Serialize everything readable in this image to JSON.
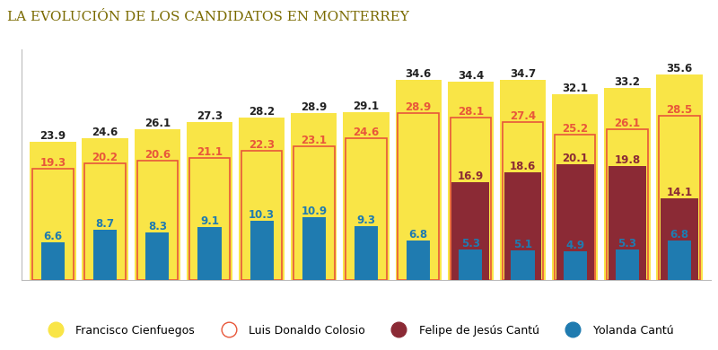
{
  "chart_data": {
    "type": "bar",
    "title": "LA EVOLUCIÓN DE LOS CANDIDATOS EN MONTERREY",
    "categories": [
      null,
      null,
      null,
      null,
      null,
      null,
      null,
      null,
      null,
      null,
      null,
      null,
      null
    ],
    "series": [
      {
        "name": "Francisco Cienfuegos",
        "color": "#f9e547",
        "values": [
          23.9,
          24.6,
          26.1,
          27.3,
          28.2,
          28.9,
          29.1,
          34.6,
          34.4,
          34.7,
          32.1,
          33.2,
          35.6
        ]
      },
      {
        "name": "Luis Donaldo Colosio",
        "color": "#e8573a",
        "values": [
          19.3,
          20.2,
          20.6,
          21.1,
          22.3,
          23.1,
          24.6,
          28.9,
          28.1,
          27.4,
          25.2,
          26.1,
          28.5
        ]
      },
      {
        "name": "Felipe de Jesús Cantú",
        "color": "#8b2a35",
        "values": [
          null,
          null,
          null,
          null,
          null,
          null,
          null,
          null,
          16.9,
          18.6,
          20.1,
          19.8,
          14.1
        ]
      },
      {
        "name": "Yolanda Cantú",
        "color": "#1f7bb0",
        "values": [
          6.6,
          8.7,
          8.3,
          9.1,
          10.3,
          10.9,
          9.3,
          6.8,
          5.3,
          5.1,
          4.9,
          5.3,
          6.8
        ]
      }
    ],
    "ylim": [
      0,
      40
    ],
    "yticks": [],
    "grid": false,
    "stacked": false,
    "data_labels": true,
    "tick_labels": false,
    "legend": "lower center"
  }
}
